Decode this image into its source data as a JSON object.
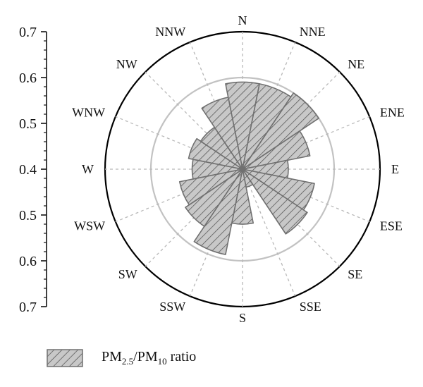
{
  "chart_data": {
    "type": "polar-bar",
    "directions": [
      "N",
      "NNE",
      "NE",
      "ENE",
      "E",
      "ESE",
      "SE",
      "SSE",
      "S",
      "SSW",
      "SW",
      "WSW",
      "W",
      "WNW",
      "NW",
      "NNW"
    ],
    "values": [
      0.59,
      0.59,
      0.6,
      0.55,
      0.5,
      0.56,
      0.57,
      0.44,
      0.52,
      0.59,
      0.55,
      0.54,
      0.51,
      0.52,
      0.51,
      0.56
    ],
    "center_value": 0.4,
    "outer_value": 0.7,
    "reference_ring": 0.6,
    "radial_axis_ticks": [
      "0.7",
      "0.6",
      "0.5",
      "0.4",
      "0.5",
      "0.6",
      "0.7"
    ],
    "radial_axis_values": [
      0.7,
      0.6,
      0.5,
      0.4,
      0.5,
      0.6,
      0.7
    ],
    "grid": true,
    "legend_position": "bottom-left",
    "legend": {
      "pm_a": "PM",
      "sub_a": "2.5",
      "slash": "/",
      "pm_b": "PM",
      "sub_b": "10",
      "suffix": " ratio"
    },
    "colors": {
      "bar_fill": "#c8c8c8",
      "bar_stroke": "#707070",
      "hatch": "#5a5a5a",
      "circle": "#000000",
      "ring": "#c2c2c2",
      "spoke": "#b8b8b8"
    }
  }
}
